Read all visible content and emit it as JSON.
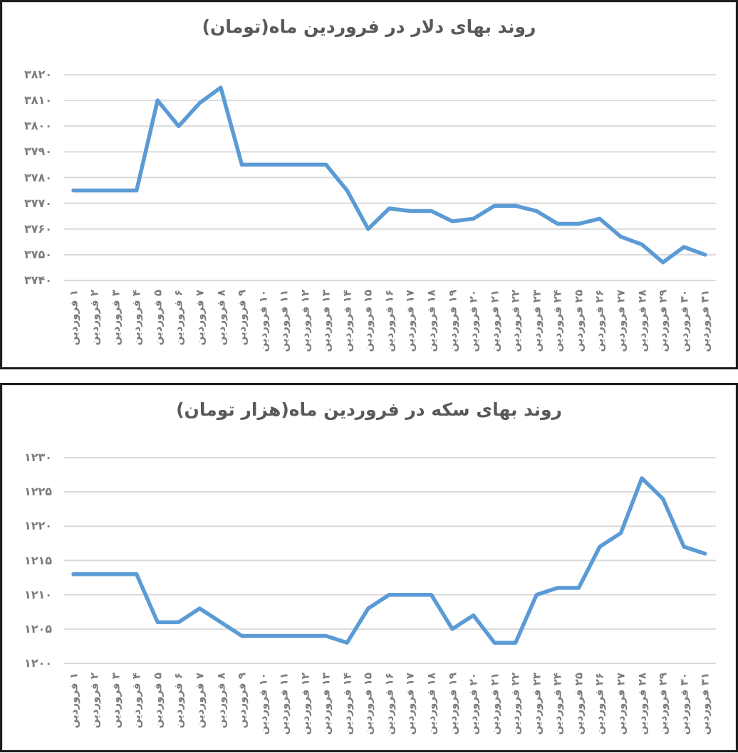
{
  "style": {
    "line_color": "#5B9BD5",
    "grid_color": "#DADADA",
    "title_color": "#595959",
    "label_color": "#7C7C7C",
    "panel_border_color": "#1E1E1E"
  },
  "chart_data": [
    {
      "type": "line",
      "title": "روند بهای دلار در فروردین ماه(تومان)",
      "unit_in_title": "تومان",
      "legend": "none",
      "grid": "horizontal",
      "ylim": [
        3740,
        3820
      ],
      "y_tick_step": 10,
      "y_tick_values": [
        3820,
        3810,
        3800,
        3790,
        3780,
        3770,
        3760,
        3750,
        3740
      ],
      "y_tick_labels": [
        "۳۸۲۰",
        "۳۸۱۰",
        "۳۸۰۰",
        "۳۷۹۰",
        "۳۷۸۰",
        "۳۷۷۰",
        "۳۷۶۰",
        "۳۷۵۰",
        "۳۷۴۰"
      ],
      "x_labels": [
        "۱ فروردین",
        "۲ فروردین",
        "۳ فروردین",
        "۴ فروردین",
        "۵ فروردین",
        "۶ فروردین",
        "۷ فروردین",
        "۸ فروردین",
        "۹ فروردین",
        "۱۰ فروردین",
        "۱۱ فروردین",
        "۱۲ فروردین",
        "۱۳ فروردین",
        "۱۴ فروردین",
        "۱۵ فروردین",
        "۱۶ فروردین",
        "۱۷ فروردین",
        "۱۸ فروردین",
        "۱۹ فروردین",
        "۲۰ فروردین",
        "۲۱ فروردین",
        "۲۲ فروردین",
        "۲۳ فروردین",
        "۲۴ فروردین",
        "۲۵ فروردین",
        "۲۶ فروردین",
        "۲۷ فروردین",
        "۲۸ فروردین",
        "۲۹ فروردین",
        "۳۰ فروردین",
        "۳۱ فروردین"
      ],
      "values": [
        3775,
        3775,
        3775,
        3775,
        3810,
        3800,
        3809,
        3815,
        3785,
        3785,
        3785,
        3785,
        3785,
        3775,
        3760,
        3768,
        3767,
        3767,
        3763,
        3764,
        3769,
        3769,
        3767,
        3762,
        3762,
        3764,
        3757,
        3754,
        3747,
        3753,
        3750
      ]
    },
    {
      "type": "line",
      "title": "روند بهای سکه در فروردین ماه(هزار تومان)",
      "unit_in_title": "هزار تومان",
      "legend": "none",
      "grid": "horizontal",
      "ylim": [
        1200,
        1230
      ],
      "y_tick_step": 5,
      "y_tick_values": [
        1230,
        1225,
        1220,
        1215,
        1210,
        1205,
        1200
      ],
      "y_tick_labels": [
        "۱۲۳۰",
        "۱۲۲۵",
        "۱۲۲۰",
        "۱۲۱۵",
        "۱۲۱۰",
        "۱۲۰۵",
        "۱۲۰۰"
      ],
      "x_labels": [
        "۱ فروردین",
        "۲ فروردین",
        "۳ فروردین",
        "۴ فروردین",
        "۵ فروردین",
        "۶ فروردین",
        "۷ فروردین",
        "۸ فروردین",
        "۹ فروردین",
        "۱۰ فروردین",
        "۱۱ فروردین",
        "۱۲ فروردین",
        "۱۳ فروردین",
        "۱۴ فروردین",
        "۱۵ فروردین",
        "۱۶ فروردین",
        "۱۷ فروردین",
        "۱۸ فروردین",
        "۱۹ فروردین",
        "۲۰ فروردین",
        "۲۱ فروردین",
        "۲۲ فروردین",
        "۲۳ فروردین",
        "۲۴ فروردین",
        "۲۵ فروردین",
        "۲۶ فروردین",
        "۲۷ فروردین",
        "۲۸ فروردین",
        "۲۹ فروردین",
        "۳۰ فروردین",
        "۳۱ فروردین"
      ],
      "values": [
        1213,
        1213,
        1213,
        1213,
        1206,
        1206,
        1208,
        1206,
        1204,
        1204,
        1204,
        1204,
        1204,
        1203,
        1208,
        1210,
        1210,
        1210,
        1205,
        1207,
        1203,
        1203,
        1210,
        1211,
        1211,
        1217,
        1219,
        1227,
        1224,
        1217,
        1216
      ]
    }
  ]
}
